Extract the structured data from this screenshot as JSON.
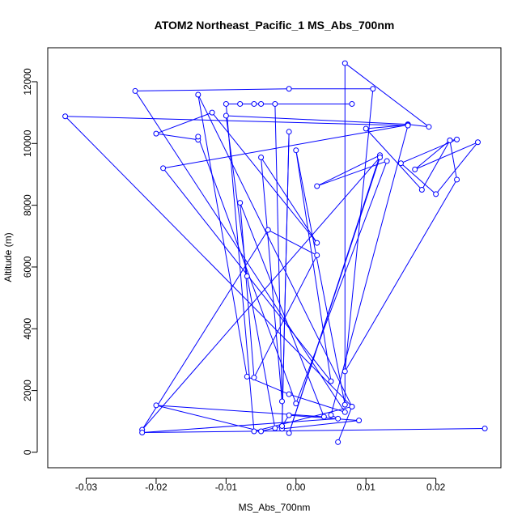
{
  "chart_data": {
    "type": "scatter",
    "title": "ATOM2 Northeast_Pacific_1 MS_Abs_700nm",
    "xlabel": "MS_Abs_700nm",
    "ylabel": "Altitude (m)",
    "xlim": [
      -0.0355,
      0.0293
    ],
    "ylim": [
      -500,
      13100
    ],
    "xticks": [
      -0.03,
      -0.02,
      -0.01,
      0.0,
      0.01,
      0.02
    ],
    "xtick_labels": [
      "-0.03",
      "-0.02",
      "-0.01",
      "0.00",
      "0.01",
      "0.02"
    ],
    "yticks": [
      0,
      2000,
      4000,
      6000,
      8000,
      10000,
      12000
    ],
    "ytick_labels": [
      "0",
      "2000",
      "4000",
      "6000",
      "8000",
      "10000",
      "12000"
    ],
    "grid": false,
    "legend": "none",
    "style": {
      "marker": "open-circle",
      "connect_points": true,
      "color": "#0000ff"
    },
    "points": [
      {
        "x": 0.006,
        "y": 330
      },
      {
        "x": 0.008,
        "y": 1480
      },
      {
        "x": -0.006,
        "y": 680
      },
      {
        "x": -0.01,
        "y": 11280
      },
      {
        "x": 0.008,
        "y": 11280
      },
      {
        "x": -0.008,
        "y": 11280
      },
      {
        "x": -0.005,
        "y": 11280
      },
      {
        "x": -0.006,
        "y": 11280
      },
      {
        "x": -0.003,
        "y": 11280
      },
      {
        "x": -0.002,
        "y": 1650
      },
      {
        "x": -0.005,
        "y": 9550
      },
      {
        "x": 0.003,
        "y": 6780
      },
      {
        "x": -0.012,
        "y": 11000
      },
      {
        "x": -0.02,
        "y": 10320
      },
      {
        "x": -0.014,
        "y": 10120
      },
      {
        "x": -0.014,
        "y": 10220
      },
      {
        "x": 0.0,
        "y": 1580
      },
      {
        "x": 0.013,
        "y": 9430
      },
      {
        "x": 0.003,
        "y": 8620
      },
      {
        "x": 0.012,
        "y": 9620
      },
      {
        "x": -0.001,
        "y": 620
      },
      {
        "x": 0.012,
        "y": 9550
      },
      {
        "x": -0.022,
        "y": 730
      },
      {
        "x": -0.004,
        "y": 7200
      },
      {
        "x": 0.003,
        "y": 6380
      },
      {
        "x": -0.006,
        "y": 2420
      },
      {
        "x": -0.008,
        "y": 8080
      },
      {
        "x": 0.004,
        "y": 1150
      },
      {
        "x": -0.02,
        "y": 1520
      },
      {
        "x": -0.005,
        "y": 680
      },
      {
        "x": -0.002,
        "y": 850
      },
      {
        "x": -0.001,
        "y": 10380
      },
      {
        "x": -0.002,
        "y": 760
      },
      {
        "x": 0.009,
        "y": 1030
      },
      {
        "x": -0.001,
        "y": 1200
      },
      {
        "x": -0.002,
        "y": 850
      },
      {
        "x": -0.003,
        "y": 780
      },
      {
        "x": -0.007,
        "y": 5700
      },
      {
        "x": -0.01,
        "y": 10900
      },
      {
        "x": 0.016,
        "y": 10620
      },
      {
        "x": 0.019,
        "y": 10540
      },
      {
        "x": 0.007,
        "y": 12600
      },
      {
        "x": 0.007,
        "y": 1540
      },
      {
        "x": 0.0,
        "y": 9780
      },
      {
        "x": 0.005,
        "y": 2300
      },
      {
        "x": -0.019,
        "y": 9200
      },
      {
        "x": 0.016,
        "y": 10600
      },
      {
        "x": 0.01,
        "y": 10480
      },
      {
        "x": 0.018,
        "y": 8500
      },
      {
        "x": 0.022,
        "y": 10100
      },
      {
        "x": 0.023,
        "y": 10130
      },
      {
        "x": 0.015,
        "y": 9360
      },
      {
        "x": 0.02,
        "y": 8360
      },
      {
        "x": 0.026,
        "y": 10040
      },
      {
        "x": 0.017,
        "y": 9160
      },
      {
        "x": 0.022,
        "y": 10100
      },
      {
        "x": 0.023,
        "y": 8830
      },
      {
        "x": 0.007,
        "y": 2620
      },
      {
        "x": 0.011,
        "y": 11770
      },
      {
        "x": -0.001,
        "y": 11770
      },
      {
        "x": -0.023,
        "y": 11700
      },
      {
        "x": 0.007,
        "y": 1300
      },
      {
        "x": -0.001,
        "y": 1880
      },
      {
        "x": -0.007,
        "y": 2450
      },
      {
        "x": -0.014,
        "y": 11580
      },
      {
        "x": 0.008,
        "y": 1480
      },
      {
        "x": -0.033,
        "y": 10880
      },
      {
        "x": 0.016,
        "y": 10580
      },
      {
        "x": 0.005,
        "y": 1210
      },
      {
        "x": 0.006,
        "y": 1090
      },
      {
        "x": -0.022,
        "y": 640
      },
      {
        "x": 0.027,
        "y": 770
      }
    ]
  }
}
